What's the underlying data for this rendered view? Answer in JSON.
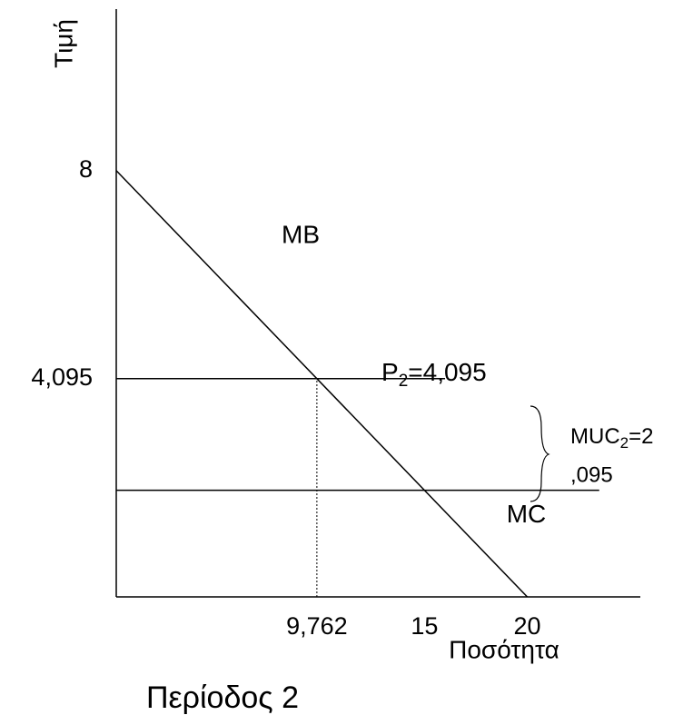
{
  "chart_data": {
    "type": "line",
    "title": "Περίοδος 2",
    "x_label": "Ποσότητα",
    "y_label": "Τιμή",
    "xlim": [
      0,
      25.5
    ],
    "ylim": [
      0,
      11.03
    ],
    "xticks": [
      {
        "value": 9.762,
        "label": "9,762"
      },
      15,
      20
    ],
    "yticks": [
      8,
      {
        "value": 4.095,
        "label": "4,095"
      }
    ],
    "series": [
      {
        "name": "MB",
        "color": "#000000",
        "x": [
          0,
          20
        ],
        "values": [
          8,
          0
        ]
      },
      {
        "name": "MC",
        "color": "#000000",
        "x": [
          0,
          23.5
        ],
        "values": [
          2,
          2
        ]
      },
      {
        "color": "#000000",
        "x": [
          0,
          16
        ],
        "values": [
          4.095,
          4.095
        ]
      }
    ],
    "annotations": {
      "price": [
        "P",
        "2",
        "=4,095"
      ],
      "markup": [
        "MUC",
        "2",
        "=2",
        ",095"
      ]
    }
  }
}
